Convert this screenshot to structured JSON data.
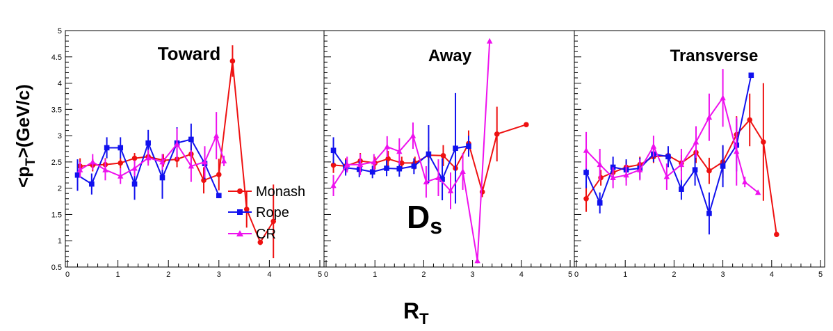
{
  "figure": {
    "xlabel_main": "R",
    "xlabel_sub": "T",
    "ylabel_pre": "<p",
    "ylabel_sub": "T",
    "ylabel_post": ">(GeV/c)",
    "particle_main": "D",
    "particle_sub": "s"
  },
  "legend": {
    "items": [
      {
        "label": "Monash",
        "color": "#ee1111",
        "marker": "circle"
      },
      {
        "label": "Rope",
        "color": "#1111ee",
        "marker": "square"
      },
      {
        "label": "CR",
        "color": "#ee11ee",
        "marker": "triangle"
      }
    ]
  },
  "chart_data": [
    {
      "type": "line",
      "title": "Toward",
      "xlim": [
        0,
        5
      ],
      "ylim": [
        0.5,
        5
      ],
      "x_ticks": [
        "0",
        "1",
        "2",
        "3",
        "4",
        "5"
      ],
      "y_ticks": [
        "0.5",
        "1",
        "1.5",
        "2",
        "2.5",
        "3",
        "3.5",
        "4",
        "4.5",
        "5"
      ],
      "series": [
        {
          "name": "Monash",
          "color": "#ee1111",
          "marker": "circle",
          "points": [
            [
              0.25,
              2.42,
              0.15
            ],
            [
              0.5,
              2.44,
              0.12
            ],
            [
              0.75,
              2.45,
              0.12
            ],
            [
              1.05,
              2.48,
              0.1
            ],
            [
              1.33,
              2.57,
              0.1
            ],
            [
              1.6,
              2.6,
              0.12
            ],
            [
              1.9,
              2.53,
              0.12
            ],
            [
              2.17,
              2.55,
              0.15
            ],
            [
              2.45,
              2.65,
              0.18
            ],
            [
              2.7,
              2.15,
              0.25
            ],
            [
              3.0,
              2.26,
              0.3
            ],
            [
              3.27,
              4.42,
              0.3
            ],
            [
              3.55,
              1.6,
              0.35
            ],
            [
              3.82,
              0.97,
              0.05
            ],
            [
              4.08,
              1.37,
              0.7
            ]
          ]
        },
        {
          "name": "Rope",
          "color": "#1111ee",
          "marker": "square",
          "points": [
            [
              0.2,
              2.25,
              0.3
            ],
            [
              0.48,
              2.08,
              0.2
            ],
            [
              0.78,
              2.77,
              0.2
            ],
            [
              1.05,
              2.77,
              0.2
            ],
            [
              1.33,
              2.08,
              0.3
            ],
            [
              1.6,
              2.86,
              0.25
            ],
            [
              1.88,
              2.2,
              0.4
            ],
            [
              2.17,
              2.86,
              0.3
            ],
            [
              2.45,
              2.93,
              0.3
            ],
            [
              2.72,
              2.47,
              0.3
            ],
            [
              3.0,
              1.86,
              0.05
            ]
          ]
        },
        {
          "name": "CR",
          "color": "#ee11ee",
          "marker": "triangle",
          "points": [
            [
              0.25,
              2.35,
              0.15
            ],
            [
              0.5,
              2.5,
              0.15
            ],
            [
              0.75,
              2.35,
              0.2
            ],
            [
              1.05,
              2.23,
              0.15
            ],
            [
              1.33,
              2.38,
              0.15
            ],
            [
              1.6,
              2.58,
              0.15
            ],
            [
              1.88,
              2.5,
              0.15
            ],
            [
              2.17,
              2.84,
              0.3
            ],
            [
              2.45,
              2.42,
              0.3
            ],
            [
              2.72,
              2.5,
              0.3
            ],
            [
              2.95,
              3.0,
              0.45
            ],
            [
              3.1,
              2.52,
              0.1
            ]
          ]
        }
      ]
    },
    {
      "type": "line",
      "title": "Away",
      "xlim": [
        0,
        5
      ],
      "ylim": [
        0.5,
        5
      ],
      "x_ticks": [
        "0",
        "1",
        "2",
        "3",
        "4",
        "5"
      ],
      "y_ticks": [],
      "series": [
        {
          "name": "Monash",
          "color": "#ee1111",
          "marker": "circle",
          "points": [
            [
              0.15,
              2.44,
              0.15
            ],
            [
              0.4,
              2.42,
              0.15
            ],
            [
              0.7,
              2.52,
              0.15
            ],
            [
              1.0,
              2.48,
              0.12
            ],
            [
              1.27,
              2.56,
              0.15
            ],
            [
              1.55,
              2.48,
              0.12
            ],
            [
              1.82,
              2.48,
              0.12
            ],
            [
              2.1,
              2.63,
              0.15
            ],
            [
              2.4,
              2.62,
              0.2
            ],
            [
              2.65,
              2.38,
              0.25
            ],
            [
              2.92,
              2.85,
              0.25
            ],
            [
              3.2,
              1.93,
              0.1
            ],
            [
              3.5,
              3.03,
              0.52
            ],
            [
              4.1,
              3.21,
              0.04
            ]
          ]
        },
        {
          "name": "Rope",
          "color": "#1111ee",
          "marker": "square",
          "points": [
            [
              0.15,
              2.72,
              0.25
            ],
            [
              0.4,
              2.39,
              0.15
            ],
            [
              0.68,
              2.36,
              0.15
            ],
            [
              0.95,
              2.31,
              0.12
            ],
            [
              1.24,
              2.38,
              0.15
            ],
            [
              1.5,
              2.37,
              0.15
            ],
            [
              1.8,
              2.42,
              0.15
            ],
            [
              2.1,
              2.65,
              0.55
            ],
            [
              2.38,
              2.17,
              0.4
            ],
            [
              2.65,
              2.76,
              1.05
            ],
            [
              2.92,
              2.8,
              0.2
            ]
          ]
        },
        {
          "name": "CR",
          "color": "#ee11ee",
          "marker": "triangle",
          "points": [
            [
              0.15,
              2.05,
              0.2
            ],
            [
              0.43,
              2.45,
              0.15
            ],
            [
              0.7,
              2.45,
              0.2
            ],
            [
              0.98,
              2.5,
              0.15
            ],
            [
              1.25,
              2.79,
              0.2
            ],
            [
              1.5,
              2.7,
              0.25
            ],
            [
              1.78,
              3.0,
              0.25
            ],
            [
              2.05,
              2.12,
              0.3
            ],
            [
              2.3,
              2.2,
              0.35
            ],
            [
              2.55,
              1.95,
              0.35
            ],
            [
              2.8,
              2.32,
              0.35
            ],
            [
              3.1,
              0.62,
              0.05
            ],
            [
              3.35,
              4.8,
              0.01
            ]
          ]
        }
      ]
    },
    {
      "type": "line",
      "title": "Transverse",
      "xlim": [
        0,
        5
      ],
      "ylim": [
        0.5,
        5
      ],
      "x_ticks": [
        "0",
        "1",
        "2",
        "3",
        "4",
        "5"
      ],
      "y_ticks": [],
      "series": [
        {
          "name": "Monash",
          "color": "#ee1111",
          "marker": "circle",
          "points": [
            [
              0.2,
              1.8,
              0.25
            ],
            [
              0.5,
              2.2,
              0.15
            ],
            [
              0.75,
              2.3,
              0.15
            ],
            [
              1.02,
              2.4,
              0.12
            ],
            [
              1.3,
              2.45,
              0.15
            ],
            [
              1.58,
              2.6,
              0.12
            ],
            [
              1.88,
              2.62,
              0.12
            ],
            [
              2.15,
              2.48,
              0.15
            ],
            [
              2.45,
              2.68,
              0.2
            ],
            [
              2.72,
              2.33,
              0.25
            ],
            [
              3.0,
              2.5,
              0.3
            ],
            [
              3.28,
              3.02,
              0.35
            ],
            [
              3.55,
              3.3,
              0.5
            ],
            [
              3.83,
              2.88,
              1.12
            ],
            [
              4.1,
              1.12,
              0.03
            ]
          ]
        },
        {
          "name": "Rope",
          "color": "#1111ee",
          "marker": "square",
          "points": [
            [
              0.2,
              2.3,
              0.3
            ],
            [
              0.48,
              1.72,
              0.2
            ],
            [
              0.75,
              2.4,
              0.2
            ],
            [
              1.02,
              2.35,
              0.2
            ],
            [
              1.3,
              2.38,
              0.2
            ],
            [
              1.58,
              2.65,
              0.15
            ],
            [
              1.88,
              2.6,
              0.2
            ],
            [
              2.15,
              1.98,
              0.2
            ],
            [
              2.43,
              2.35,
              0.3
            ],
            [
              2.72,
              1.52,
              0.4
            ],
            [
              3.0,
              2.42,
              0.4
            ],
            [
              3.28,
              2.82,
              0.5
            ],
            [
              3.58,
              4.15,
              0.02
            ]
          ]
        },
        {
          "name": "CR",
          "color": "#ee11ee",
          "marker": "triangle",
          "points": [
            [
              0.2,
              2.72,
              0.35
            ],
            [
              0.48,
              2.45,
              0.3
            ],
            [
              0.75,
              2.2,
              0.2
            ],
            [
              1.02,
              2.25,
              0.2
            ],
            [
              1.3,
              2.35,
              0.2
            ],
            [
              1.58,
              2.8,
              0.2
            ],
            [
              1.85,
              2.22,
              0.25
            ],
            [
              2.15,
              2.45,
              0.3
            ],
            [
              2.45,
              2.88,
              0.3
            ],
            [
              2.72,
              3.35,
              0.45
            ],
            [
              3.0,
              3.72,
              0.55
            ],
            [
              3.28,
              2.7,
              0.65
            ],
            [
              3.45,
              2.12,
              0.1
            ],
            [
              3.72,
              1.92,
              0.02
            ]
          ]
        }
      ]
    }
  ]
}
